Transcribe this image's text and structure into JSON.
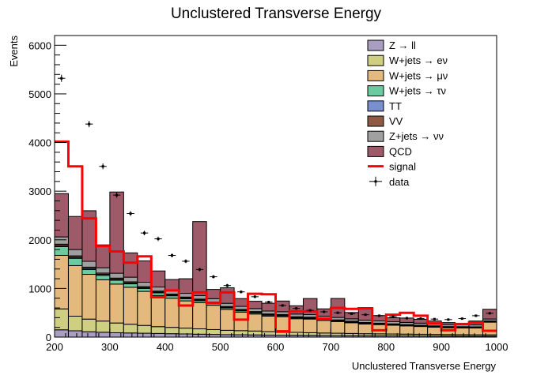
{
  "chart_data": {
    "type": "stacked-histogram",
    "title": "Unclustered Transverse Energy",
    "xlabel": "Unclustered Transverse Energy",
    "ylabel": "Events",
    "xlim": [
      200,
      1000
    ],
    "ylim": [
      0,
      6200
    ],
    "xticks": [
      200,
      300,
      400,
      500,
      600,
      700,
      800,
      900,
      1000
    ],
    "yticks": [
      0,
      1000,
      2000,
      3000,
      4000,
      5000,
      6000
    ],
    "bin_edges": [
      200,
      225,
      250,
      275,
      300,
      325,
      350,
      375,
      400,
      425,
      450,
      475,
      500,
      525,
      550,
      575,
      600,
      625,
      650,
      675,
      700,
      725,
      750,
      775,
      800,
      825,
      850,
      875,
      900,
      925,
      950,
      975,
      1000
    ],
    "legend_position": "top-right",
    "stack": [
      {
        "name": "Z → ll",
        "color": "#a99dc2",
        "values": [
          150,
          130,
          110,
          100,
          90,
          85,
          80,
          75,
          70,
          65,
          60,
          55,
          50,
          48,
          45,
          42,
          40,
          38,
          36,
          34,
          32,
          30,
          28,
          27,
          26,
          25,
          24,
          23,
          22,
          21,
          20,
          20
        ]
      },
      {
        "name": "W+jets → eν",
        "color": "#cfcf82",
        "values": [
          430,
          300,
          260,
          230,
          200,
          180,
          160,
          140,
          130,
          120,
          110,
          100,
          90,
          85,
          80,
          70,
          60,
          60,
          55,
          50,
          48,
          45,
          42,
          40,
          38,
          36,
          34,
          32,
          30,
          29,
          28,
          27
        ]
      },
      {
        "name": "W+jets → μν",
        "color": "#e3b97d",
        "values": [
          1100,
          1040,
          920,
          850,
          800,
          760,
          700,
          640,
          600,
          560,
          540,
          500,
          430,
          380,
          350,
          320,
          320,
          280,
          280,
          260,
          240,
          220,
          200,
          190,
          180,
          170,
          160,
          150,
          140,
          140,
          140,
          260
        ]
      },
      {
        "name": "W+jets → τν",
        "color": "#6ccaa0",
        "values": [
          180,
          150,
          100,
          90,
          80,
          70,
          60,
          55,
          50,
          45,
          40,
          35,
          30,
          28,
          25,
          20,
          20,
          18,
          16,
          15,
          14,
          13,
          12,
          12,
          11,
          10,
          10,
          10,
          9,
          9,
          8,
          10
        ]
      },
      {
        "name": "TT",
        "color": "#7a8fd0",
        "values": [
          20,
          20,
          20,
          20,
          18,
          18,
          16,
          16,
          15,
          15,
          14,
          14,
          13,
          13,
          12,
          12,
          12,
          11,
          11,
          10,
          10,
          10,
          9,
          9,
          9,
          8,
          8,
          8,
          8,
          8,
          8,
          8
        ]
      },
      {
        "name": "VV",
        "color": "#8e5a43",
        "values": [
          30,
          30,
          28,
          26,
          25,
          24,
          22,
          20,
          19,
          18,
          17,
          16,
          15,
          14,
          13,
          12,
          12,
          11,
          11,
          10,
          10,
          9,
          9,
          8,
          8,
          8,
          7,
          7,
          7,
          7,
          7,
          7
        ]
      },
      {
        "name": "Z+jets → νν",
        "color": "#a0a0a0",
        "values": [
          150,
          130,
          120,
          110,
          100,
          95,
          90,
          84,
          80,
          77,
          74,
          70,
          67,
          64,
          62,
          60,
          58,
          56,
          54,
          52,
          50,
          49,
          48,
          47,
          46,
          45,
          44,
          43,
          42,
          41,
          40,
          40
        ]
      },
      {
        "name": "QCD",
        "color": "#9f5a6a",
        "values": [
          890,
          680,
          1040,
          470,
          1670,
          500,
          440,
          330,
          220,
          300,
          1520,
          190,
          320,
          160,
          150,
          160,
          220,
          170,
          330,
          150,
          390,
          130,
          260,
          110,
          80,
          90,
          80,
          60,
          40,
          20,
          80,
          200
        ]
      }
    ],
    "signal": {
      "name": "signal",
      "color": "#ff0000",
      "values": [
        4020,
        3510,
        2440,
        1870,
        1760,
        1530,
        1660,
        820,
        960,
        650,
        920,
        700,
        920,
        360,
        890,
        880,
        120,
        530,
        530,
        380,
        600,
        580,
        590,
        140,
        460,
        500,
        440,
        280,
        140,
        270,
        300,
        130
      ]
    },
    "data": {
      "name": "data",
      "values": [
        5320,
        0,
        4380,
        3510,
        2920,
        2540,
        2140,
        2020,
        1680,
        1560,
        1390,
        1240,
        1060,
        930,
        830,
        720,
        650,
        590,
        550,
        520,
        500,
        480,
        460,
        440,
        420,
        390,
        380,
        370,
        360,
        380,
        440,
        490
      ],
      "errors": [
        73,
        0,
        66,
        59,
        54,
        50,
        46,
        45,
        41,
        39,
        37,
        35,
        33,
        30,
        29,
        27,
        25,
        24,
        23,
        23,
        22,
        22,
        21,
        21,
        20,
        20,
        19,
        19,
        19,
        19,
        21,
        22
      ]
    }
  }
}
